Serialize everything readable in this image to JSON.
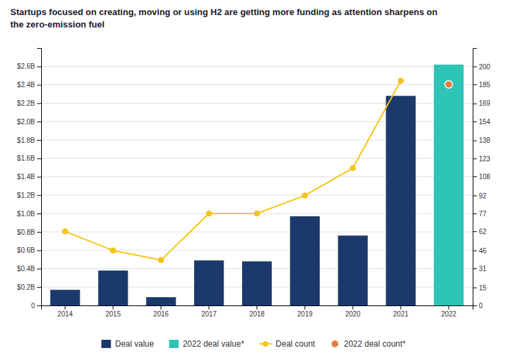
{
  "chart_data": {
    "type": "bar",
    "title": "Startups focused on creating, moving or using H2 are getting more funding as attention sharpens on\nthe zero-emission fuel",
    "categories": [
      "2014",
      "2015",
      "2016",
      "2017",
      "2018",
      "2019",
      "2020",
      "2021",
      "2022"
    ],
    "series": [
      {
        "name": "Deal value",
        "type": "bar",
        "color": "#1b3a6b",
        "values": [
          0.17,
          0.38,
          0.09,
          0.49,
          0.48,
          0.97,
          0.76,
          2.28,
          null
        ]
      },
      {
        "name": "2022 deal value*",
        "type": "bar",
        "color": "#2ec4b6",
        "values": [
          null,
          null,
          null,
          null,
          null,
          null,
          null,
          null,
          2.62
        ]
      },
      {
        "name": "Deal count",
        "type": "line",
        "axis": "y2",
        "color": "#f5c518",
        "marker": "circle",
        "values": [
          62,
          46,
          38,
          77,
          77,
          92,
          115,
          188,
          null
        ]
      },
      {
        "name": "2022 deal count*",
        "type": "scatter",
        "axis": "y2",
        "color": "#e87c3e",
        "marker": "circle",
        "values": [
          null,
          null,
          null,
          null,
          null,
          null,
          null,
          null,
          185
        ]
      }
    ],
    "ylim": [
      0,
      2.8
    ],
    "yticks": [
      0,
      {
        "value": 0.2,
        "label": "$0.2B"
      },
      {
        "value": 0.4,
        "label": "$0.4B"
      },
      {
        "value": 0.6,
        "label": "$0.6B"
      },
      {
        "value": 0.8,
        "label": "$0.8B"
      },
      {
        "value": 1.0,
        "label": "$1.0B"
      },
      {
        "value": 1.2,
        "label": "$1.2B"
      },
      {
        "value": 1.4,
        "label": "$1.4B"
      },
      {
        "value": 1.6,
        "label": "$1.6B"
      },
      {
        "value": 1.8,
        "label": "$1.8B"
      },
      {
        "value": 2.0,
        "label": "$2.0B"
      },
      {
        "value": 2.2,
        "label": "$2.2B"
      },
      {
        "value": 2.4,
        "label": "$2.4B"
      },
      {
        "value": 2.6,
        "label": "$2.6B"
      }
    ],
    "y2lim": [
      0,
      215.4
    ],
    "y2ticks": [
      0,
      15,
      31,
      46,
      62,
      77,
      92,
      108,
      123,
      138,
      154,
      169,
      185,
      200
    ],
    "grid": true,
    "legend": "bottom"
  }
}
